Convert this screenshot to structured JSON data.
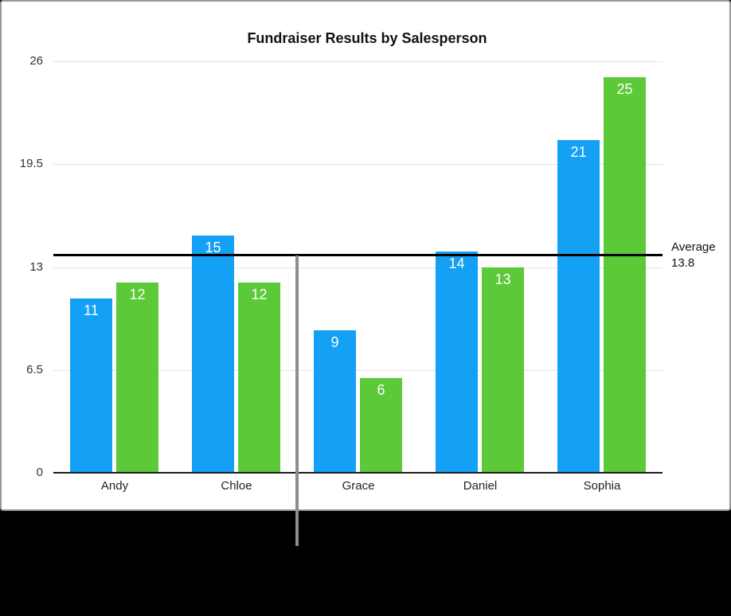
{
  "chart_data": {
    "type": "bar",
    "title": "Fundraiser Results by Salesperson",
    "categories": [
      "Andy",
      "Chloe",
      "Grace",
      "Daniel",
      "Sophia"
    ],
    "series": [
      {
        "name": "blue-series",
        "color": "#14a0f5",
        "values": [
          11,
          15,
          9,
          14,
          21
        ]
      },
      {
        "name": "green-series",
        "color": "#5bc938",
        "values": [
          12,
          12,
          6,
          13,
          25
        ]
      }
    ],
    "value_labels_shown": true,
    "ytick_labels": [
      "0",
      "6.5",
      "13",
      "19.5",
      "26"
    ],
    "yticks": [
      0,
      6.5,
      13,
      19.5,
      26
    ],
    "ylim": [
      0,
      26
    ],
    "grid": "horizontal",
    "legend": "none",
    "average_line": {
      "value": 13.8,
      "label_lines": [
        "Average",
        "13.8"
      ],
      "color": "#000000"
    },
    "colors": {
      "gridline": "#e3e3e3",
      "axis": "#1c1c1c",
      "callout_line": "#8d8d8d",
      "card_border": "#98989b",
      "card_background": "#ffffff",
      "page_background": "#000000"
    }
  }
}
